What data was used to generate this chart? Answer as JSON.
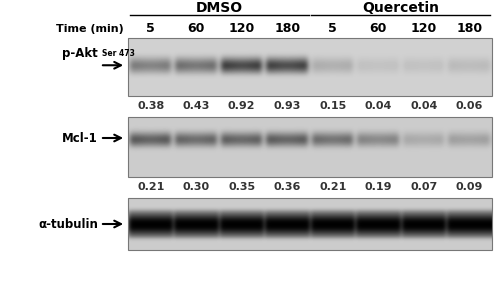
{
  "dmso_label": "DMSO",
  "quercetin_label": "Quercetin",
  "time_label": "Time (min)",
  "time_points": [
    "5",
    "60",
    "120",
    "180",
    "5",
    "60",
    "120",
    "180"
  ],
  "pakt_label": "p-Akt",
  "pakt_superscript": "Ser 473",
  "mcl1_label": "Mcl-1",
  "tubulin_label": "α-tubulin",
  "pakt_values": [
    "0.38",
    "0.43",
    "0.92",
    "0.93",
    "0.15",
    "0.04",
    "0.04",
    "0.06"
  ],
  "mcl1_values": [
    "0.21",
    "0.30",
    "0.35",
    "0.36",
    "0.21",
    "0.19",
    "0.07",
    "0.09"
  ],
  "pakt_intensities": [
    0.52,
    0.6,
    0.9,
    0.88,
    0.22,
    0.1,
    0.1,
    0.14
  ],
  "mcl1_intensities": [
    0.72,
    0.65,
    0.68,
    0.7,
    0.6,
    0.45,
    0.22,
    0.28
  ],
  "tub_intensities": [
    0.95,
    0.95,
    0.95,
    0.95,
    0.95,
    0.95,
    0.95,
    0.95
  ],
  "panel_bg_light": "#c8c4c0",
  "panel_bg_lighter": "#dedad6",
  "bg_color": "#ffffff",
  "value_color": "#222222",
  "label_color": "#000000",
  "line_color": "#000000"
}
